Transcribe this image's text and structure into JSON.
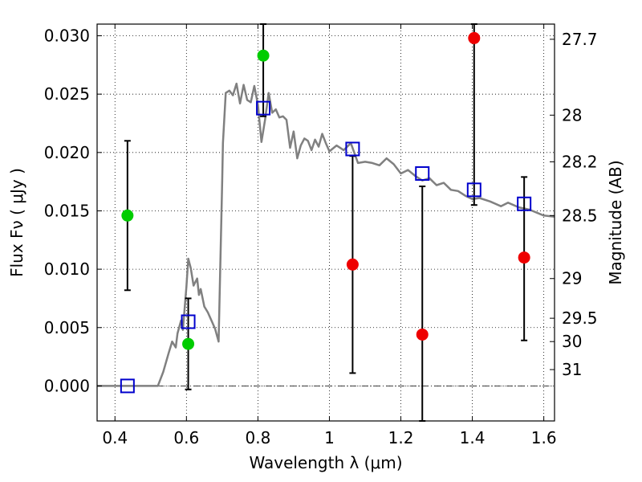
{
  "chart_data": {
    "type": "scatter",
    "xlabel": "Wavelength  λ (μm)",
    "ylabel": "Flux  Fν  ( μJy )",
    "ylabel_right": "Magnitude (AB)",
    "xlim": [
      0.35,
      1.63
    ],
    "ylim": [
      -0.003,
      0.031
    ],
    "x_ticks": [
      {
        "value": 0.4,
        "label": "0.4"
      },
      {
        "value": 0.6,
        "label": "0.6"
      },
      {
        "value": 0.8,
        "label": "0.8"
      },
      {
        "value": 1.0,
        "label": "1"
      },
      {
        "value": 1.2,
        "label": "1.2"
      },
      {
        "value": 1.4,
        "label": "1.4"
      },
      {
        "value": 1.6,
        "label": "1.6"
      }
    ],
    "y_ticks": [
      {
        "value": 0.0,
        "label": "0.000"
      },
      {
        "value": 0.005,
        "label": "0.005"
      },
      {
        "value": 0.01,
        "label": "0.010"
      },
      {
        "value": 0.015,
        "label": "0.015"
      },
      {
        "value": 0.02,
        "label": "0.020"
      },
      {
        "value": 0.025,
        "label": "0.025"
      },
      {
        "value": 0.03,
        "label": "0.030"
      }
    ],
    "right_ticks": [
      {
        "flux": 0.0297,
        "label": "27.7"
      },
      {
        "flux": 0.0232,
        "label": "28"
      },
      {
        "flux": 0.0192,
        "label": "28.2"
      },
      {
        "flux": 0.0146,
        "label": "28.5"
      },
      {
        "flux": 0.0092,
        "label": "29"
      },
      {
        "flux": 0.0058,
        "label": "29.5"
      },
      {
        "flux": 0.0038,
        "label": "30"
      },
      {
        "flux": 0.0014,
        "label": "31"
      }
    ],
    "grid": true,
    "zero_line": true,
    "colors": {
      "template": "#808080",
      "green": "#00cc00",
      "red": "#ee0000",
      "model": "#0000cc",
      "errorbar": "#000000"
    },
    "template_curve": {
      "x": [
        0.35,
        0.52,
        0.535,
        0.55,
        0.56,
        0.57,
        0.575,
        0.585,
        0.59,
        0.6,
        0.605,
        0.612,
        0.62,
        0.63,
        0.635,
        0.64,
        0.65,
        0.66,
        0.67,
        0.68,
        0.69,
        0.7,
        0.702,
        0.71,
        0.72,
        0.73,
        0.74,
        0.75,
        0.76,
        0.77,
        0.78,
        0.79,
        0.8,
        0.81,
        0.82,
        0.83,
        0.84,
        0.85,
        0.86,
        0.87,
        0.88,
        0.89,
        0.9,
        0.91,
        0.92,
        0.93,
        0.94,
        0.95,
        0.96,
        0.97,
        0.98,
        0.99,
        1.0,
        1.02,
        1.04,
        1.06,
        1.08,
        1.1,
        1.12,
        1.14,
        1.16,
        1.18,
        1.2,
        1.22,
        1.24,
        1.26,
        1.28,
        1.3,
        1.32,
        1.34,
        1.36,
        1.38,
        1.4,
        1.42,
        1.45,
        1.48,
        1.5,
        1.53,
        1.56,
        1.6,
        1.63
      ],
      "y": [
        0.0,
        0.0,
        0.0012,
        0.0028,
        0.0038,
        0.0033,
        0.0045,
        0.0056,
        0.0048,
        0.0085,
        0.0109,
        0.0101,
        0.0086,
        0.0092,
        0.0078,
        0.0083,
        0.0068,
        0.0063,
        0.0056,
        0.0049,
        0.0038,
        0.0176,
        0.0208,
        0.0251,
        0.0253,
        0.0249,
        0.0259,
        0.0242,
        0.0258,
        0.0245,
        0.0243,
        0.0257,
        0.0241,
        0.0209,
        0.0228,
        0.0251,
        0.0234,
        0.0237,
        0.023,
        0.0231,
        0.0228,
        0.0204,
        0.0218,
        0.0195,
        0.0206,
        0.0212,
        0.021,
        0.0202,
        0.0211,
        0.0205,
        0.0216,
        0.0208,
        0.0201,
        0.0206,
        0.0202,
        0.0208,
        0.0191,
        0.0192,
        0.0191,
        0.0189,
        0.0195,
        0.019,
        0.0182,
        0.0185,
        0.018,
        0.0176,
        0.0178,
        0.0172,
        0.0174,
        0.0168,
        0.0167,
        0.0163,
        0.016,
        0.0161,
        0.0158,
        0.0154,
        0.0157,
        0.0153,
        0.0151,
        0.0146,
        0.0145
      ]
    },
    "points": [
      {
        "x": 0.435,
        "flux": 0.0146,
        "err_low": 0.0082,
        "err_high": 0.021,
        "color": "green"
      },
      {
        "x": 0.605,
        "flux": 0.0036,
        "err_low": -0.0003,
        "err_high": 0.0075,
        "color": "green"
      },
      {
        "x": 0.815,
        "flux": 0.0283,
        "err_low": 0.0231,
        "err_high": 0.031,
        "color": "green"
      },
      {
        "x": 1.065,
        "flux": 0.0104,
        "err_low": 0.0011,
        "err_high": 0.0197,
        "color": "red"
      },
      {
        "x": 1.26,
        "flux": 0.0044,
        "err_low": -0.003,
        "err_high": 0.0171,
        "color": "red"
      },
      {
        "x": 1.405,
        "flux": 0.0298,
        "err_low": 0.0155,
        "err_high": 0.031,
        "color": "red"
      },
      {
        "x": 1.545,
        "flux": 0.011,
        "err_low": 0.0039,
        "err_high": 0.0179,
        "color": "red"
      }
    ],
    "model_points": [
      {
        "x": 0.435,
        "flux": 0.0
      },
      {
        "x": 0.605,
        "flux": 0.0055
      },
      {
        "x": 0.815,
        "flux": 0.0238
      },
      {
        "x": 1.065,
        "flux": 0.0203
      },
      {
        "x": 1.26,
        "flux": 0.0182
      },
      {
        "x": 1.405,
        "flux": 0.0168
      },
      {
        "x": 1.545,
        "flux": 0.0156
      }
    ]
  }
}
